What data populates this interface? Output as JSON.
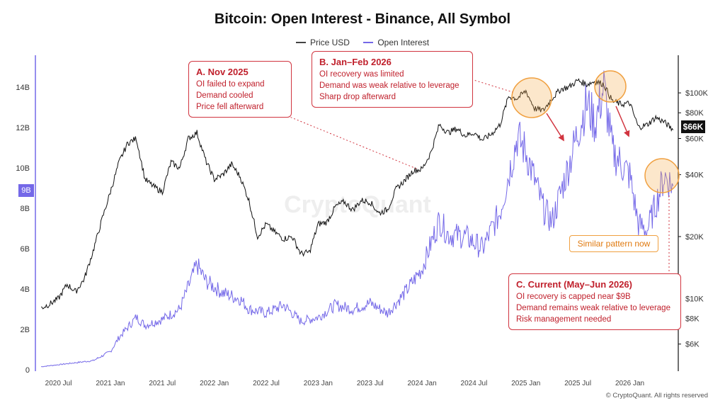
{
  "chart_data": {
    "type": "line",
    "title": "Bitcoin: Open Interest - Binance, All Symbol",
    "legend": [
      "Price USD",
      "Open Interest"
    ],
    "x_ticks": [
      "2020 Jul",
      "2021 Jan",
      "2021 Jul",
      "2022 Jan",
      "2022 Jul",
      "2023 Jan",
      "2023 Jul",
      "2024 Jan",
      "2024 Jul",
      "2025 Jan",
      "2025 Jul",
      "2026 Jan"
    ],
    "x_range": [
      "2020-05",
      "2026-06"
    ],
    "left_axis": {
      "ticks": [
        "0",
        "2B",
        "4B",
        "6B",
        "8B",
        "10B",
        "12B",
        "14B"
      ],
      "range": [
        0,
        15.5
      ],
      "current_badge": "9B"
    },
    "right_axis": {
      "scale": "log",
      "ticks": [
        "$6K",
        "$8K",
        "$10K",
        "$20K",
        "$40K",
        "$60K",
        "$80K",
        "$100K"
      ],
      "current_badge": "$66K"
    },
    "series": [
      {
        "name": "Price USD",
        "color": "#111111",
        "points": [
          [
            "2020-05",
            9000
          ],
          [
            "2020-06",
            9400
          ],
          [
            "2020-07",
            10000
          ],
          [
            "2020-08",
            11700
          ],
          [
            "2020-09",
            10800
          ],
          [
            "2020-10",
            12500
          ],
          [
            "2020-11",
            17000
          ],
          [
            "2020-12",
            24000
          ],
          [
            "2021-01",
            33000
          ],
          [
            "2021-02",
            46000
          ],
          [
            "2021-03",
            57000
          ],
          [
            "2021-04",
            60000
          ],
          [
            "2021-05",
            38000
          ],
          [
            "2021-06",
            35000
          ],
          [
            "2021-07",
            33000
          ],
          [
            "2021-08",
            46000
          ],
          [
            "2021-09",
            43000
          ],
          [
            "2021-10",
            60000
          ],
          [
            "2021-11",
            64000
          ],
          [
            "2021-12",
            47000
          ],
          [
            "2022-01",
            38000
          ],
          [
            "2022-02",
            40000
          ],
          [
            "2022-03",
            45000
          ],
          [
            "2022-04",
            39000
          ],
          [
            "2022-05",
            30000
          ],
          [
            "2022-06",
            20000
          ],
          [
            "2022-07",
            23000
          ],
          [
            "2022-08",
            21000
          ],
          [
            "2022-09",
            19500
          ],
          [
            "2022-10",
            20000
          ],
          [
            "2022-11",
            16500
          ],
          [
            "2022-12",
            16800
          ],
          [
            "2023-01",
            23000
          ],
          [
            "2023-02",
            23500
          ],
          [
            "2023-03",
            28000
          ],
          [
            "2023-04",
            29500
          ],
          [
            "2023-05",
            27000
          ],
          [
            "2023-06",
            30000
          ],
          [
            "2023-07",
            29500
          ],
          [
            "2023-08",
            26000
          ],
          [
            "2023-09",
            27000
          ],
          [
            "2023-10",
            34000
          ],
          [
            "2023-11",
            37500
          ],
          [
            "2023-12",
            42000
          ],
          [
            "2024-01",
            42500
          ],
          [
            "2024-02",
            51000
          ],
          [
            "2024-03",
            70000
          ],
          [
            "2024-04",
            64000
          ],
          [
            "2024-05",
            67000
          ],
          [
            "2024-06",
            62000
          ],
          [
            "2024-07",
            64000
          ],
          [
            "2024-08",
            59000
          ],
          [
            "2024-09",
            63000
          ],
          [
            "2024-10",
            70000
          ],
          [
            "2024-11",
            96000
          ],
          [
            "2024-12",
            94000
          ],
          [
            "2025-01",
            102000
          ],
          [
            "2025-02",
            84000
          ],
          [
            "2025-03",
            82000
          ],
          [
            "2025-04",
            94000
          ],
          [
            "2025-05",
            104000
          ],
          [
            "2025-06",
            107000
          ],
          [
            "2025-07",
            115000
          ],
          [
            "2025-08",
            110000
          ],
          [
            "2025-09",
            114000
          ],
          [
            "2025-10",
            110000
          ],
          [
            "2025-11",
            91000
          ],
          [
            "2025-12",
            88000
          ],
          [
            "2026-01",
            89000
          ],
          [
            "2026-02",
            68000
          ],
          [
            "2026-03",
            70000
          ],
          [
            "2026-04",
            76000
          ],
          [
            "2026-05",
            72000
          ],
          [
            "2026-06",
            66000
          ]
        ]
      },
      {
        "name": "Open Interest",
        "color": "#7468e8",
        "points": [
          [
            "2020-05",
            0.15
          ],
          [
            "2020-07",
            0.25
          ],
          [
            "2020-09",
            0.35
          ],
          [
            "2020-11",
            0.45
          ],
          [
            "2021-01",
            0.9
          ],
          [
            "2021-02",
            1.6
          ],
          [
            "2021-04",
            2.6
          ],
          [
            "2021-05",
            2.2
          ],
          [
            "2021-07",
            2.5
          ],
          [
            "2021-09",
            3.0
          ],
          [
            "2021-11",
            5.2
          ],
          [
            "2021-12",
            4.4
          ],
          [
            "2022-02",
            3.8
          ],
          [
            "2022-04",
            3.5
          ],
          [
            "2022-05",
            3.0
          ],
          [
            "2022-07",
            2.8
          ],
          [
            "2022-09",
            3.2
          ],
          [
            "2022-11",
            2.4
          ],
          [
            "2023-01",
            2.6
          ],
          [
            "2023-03",
            3.2
          ],
          [
            "2023-05",
            3.0
          ],
          [
            "2023-07",
            3.3
          ],
          [
            "2023-09",
            2.8
          ],
          [
            "2023-11",
            3.8
          ],
          [
            "2024-01",
            5.0
          ],
          [
            "2024-03",
            7.4
          ],
          [
            "2024-04",
            6.7
          ],
          [
            "2024-06",
            6.6
          ],
          [
            "2024-08",
            6.0
          ],
          [
            "2024-10",
            7.8
          ],
          [
            "2024-12",
            11.5
          ],
          [
            "2025-01",
            10.8
          ],
          [
            "2025-03",
            8.0
          ],
          [
            "2025-04",
            7.3
          ],
          [
            "2025-06",
            10.2
          ],
          [
            "2025-07",
            11.8
          ],
          [
            "2025-08",
            13.2
          ],
          [
            "2025-09",
            12.2
          ],
          [
            "2025-10",
            14.0
          ],
          [
            "2025-11",
            10.8
          ],
          [
            "2025-12",
            10.2
          ],
          [
            "2026-01",
            9.6
          ],
          [
            "2026-02",
            7.2
          ],
          [
            "2026-03",
            6.9
          ],
          [
            "2026-04",
            8.2
          ],
          [
            "2026-05",
            9.6
          ],
          [
            "2026-06",
            9.1
          ]
        ]
      }
    ]
  },
  "annotations": {
    "a": {
      "heading": "A. Nov 2025",
      "lines": [
        "OI failed to expand",
        "Demand cooled",
        "Price fell afterward"
      ]
    },
    "b": {
      "heading": "B. Jan–Feb 2026",
      "lines": [
        "OI recovery was limited",
        "Demand was weak relative to leverage",
        "Sharp drop afterward"
      ]
    },
    "c": {
      "heading": "C. Current (May–Jun 2026)",
      "lines": [
        "OI recovery is capped near $9B",
        "Demand remains weak relative to leverage",
        "Risk management needed"
      ]
    },
    "similar": "Similar pattern now"
  },
  "watermark": "CryptoQuant",
  "copyright": "© CryptoQuant. All rights reserved",
  "colors": {
    "price": "#111111",
    "oi": "#7468e8",
    "annotation": "#d1343f",
    "highlight": "#f0a040"
  }
}
